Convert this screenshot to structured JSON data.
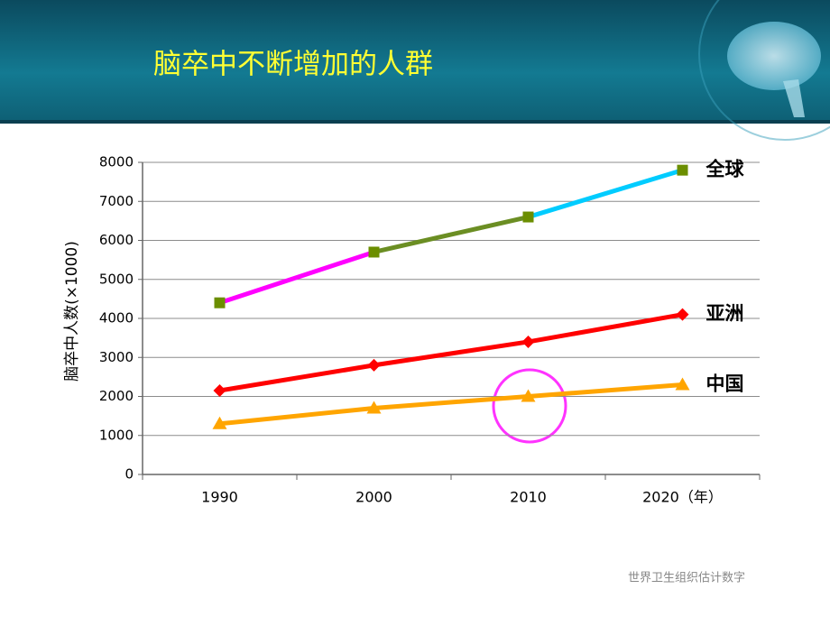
{
  "chart_data": {
    "type": "line",
    "title": "脑卒中不断增加的人群",
    "y_label": "脑卒中人数(×1000)",
    "footnote": "世界卫生组织估计数字",
    "categories": [
      "1990",
      "2000",
      "2010",
      "2020（年）"
    ],
    "series": [
      {
        "name": "全球",
        "color": "#6b8e00",
        "marker": "square",
        "segment_colors": [
          "#ff00ff",
          "#6b8e23",
          "#00ccff"
        ],
        "values": [
          4400,
          5700,
          6600,
          7800
        ]
      },
      {
        "name": "亚洲",
        "color": "#ff0000",
        "marker": "diamond",
        "values": [
          2150,
          2800,
          3400,
          4100
        ]
      },
      {
        "name": "中国",
        "color": "#ffa500",
        "marker": "triangle",
        "values": [
          1300,
          1700,
          2000,
          2300
        ]
      }
    ],
    "ylim": [
      0,
      8000
    ],
    "yticks": [
      0,
      1000,
      2000,
      3000,
      4000,
      5000,
      6000,
      7000,
      8000
    ],
    "grid": true
  }
}
